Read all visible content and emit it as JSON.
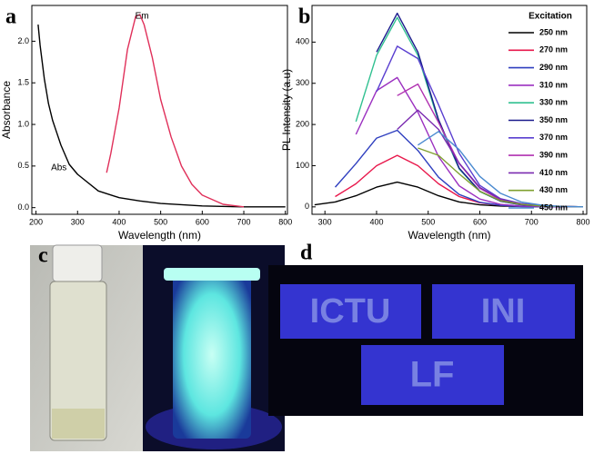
{
  "chart_data": [
    {
      "type": "line",
      "panel_label": "a",
      "x_label": "Wavelength (nm)",
      "y_label": "Absorbance",
      "xlim": [
        190,
        805
      ],
      "ylim": [
        -0.08,
        2.43
      ],
      "xticks": [
        200,
        300,
        400,
        500,
        600,
        700,
        800
      ],
      "yticks": [
        {
          "value": 0,
          "label": "0.0"
        },
        0.5,
        {
          "value": 1,
          "label": "1.0"
        },
        1.5,
        {
          "value": 2,
          "label": "2.0"
        }
      ],
      "grid": false,
      "series": [
        {
          "name": "Abs",
          "color": "#000000",
          "x": [
            205,
            210,
            220,
            230,
            240,
            250,
            260,
            280,
            300,
            350,
            400,
            450,
            500,
            600,
            700,
            800
          ],
          "values": [
            2.2,
            1.95,
            1.55,
            1.25,
            1.05,
            0.9,
            0.75,
            0.52,
            0.4,
            0.2,
            0.12,
            0.08,
            0.05,
            0.02,
            0.01,
            0.01
          ]
        },
        {
          "name": "Em",
          "color": "#e0305a",
          "x": [
            370,
            380,
            400,
            420,
            440,
            450,
            460,
            480,
            500,
            525,
            550,
            575,
            600,
            650,
            700
          ],
          "values": [
            0.42,
            0.65,
            1.2,
            1.9,
            2.3,
            2.32,
            2.2,
            1.8,
            1.3,
            0.85,
            0.5,
            0.28,
            0.15,
            0.04,
            0.01
          ]
        }
      ],
      "annotations": [
        {
          "text": "Abs",
          "x": 255,
          "y": 0.48
        },
        {
          "text": "Em",
          "x": 455,
          "y": 2.3
        }
      ]
    },
    {
      "type": "line",
      "panel_label": "b",
      "x_label": "Wavelength (nm)",
      "y_label": "PL Intensity (a.u)",
      "xlim": [
        275,
        807
      ],
      "ylim": [
        -18,
        489
      ],
      "xticks": [
        300,
        400,
        500,
        600,
        700,
        800
      ],
      "yticks": [
        0,
        100,
        200,
        300,
        400
      ],
      "grid": false,
      "legend_title": "Excitation",
      "legend": "upper right",
      "x": [
        280,
        320,
        360,
        400,
        440,
        480,
        520,
        560,
        600,
        640,
        680,
        720,
        760,
        800
      ],
      "series": [
        {
          "name": "250 nm",
          "color": "#000000",
          "values": [
            5,
            12,
            27,
            48,
            60,
            48,
            27,
            12,
            5,
            2,
            1,
            0,
            0,
            0
          ]
        },
        {
          "name": "270 nm",
          "color": "#e8174b",
          "values": [
            null,
            25,
            56,
            100,
            125,
            100,
            56,
            25,
            10,
            4,
            1,
            0,
            0,
            0
          ]
        },
        {
          "name": "290 nm",
          "color": "#2f3fbf",
          "values": [
            null,
            48,
            105,
            167,
            186,
            137,
            72,
            30,
            11,
            4,
            1,
            0,
            0,
            0
          ]
        },
        {
          "name": "310 nm",
          "color": "#9b30c0",
          "values": [
            null,
            null,
            176,
            282,
            314,
            230,
            122,
            51,
            19,
            6,
            2,
            1,
            0,
            0
          ]
        },
        {
          "name": "330 nm",
          "color": "#30c090",
          "values": [
            null,
            null,
            207,
            368,
            460,
            368,
            207,
            92,
            37,
            14,
            5,
            2,
            1,
            0
          ]
        },
        {
          "name": "350 nm",
          "color": "#1a1a8c",
          "values": [
            null,
            null,
            null,
            376,
            470,
            376,
            212,
            94,
            38,
            14,
            5,
            2,
            1,
            0
          ]
        },
        {
          "name": "370 nm",
          "color": "#5a3fd0",
          "values": [
            null,
            null,
            null,
            280,
            390,
            360,
            248,
            130,
            52,
            20,
            8,
            3,
            1,
            0
          ]
        },
        {
          "name": "390 nm",
          "color": "#b030b0",
          "values": [
            null,
            null,
            null,
            null,
            270,
            298,
            205,
            105,
            45,
            17,
            6,
            2,
            1,
            0
          ]
        },
        {
          "name": "410 nm",
          "color": "#7a2ab0",
          "values": [
            null,
            null,
            null,
            null,
            188,
            235,
            188,
            106,
            47,
            19,
            7,
            2,
            1,
            0
          ]
        },
        {
          "name": "430 nm",
          "color": "#80a030",
          "values": [
            null,
            null,
            null,
            null,
            null,
            143,
            125,
            80,
            38,
            15,
            6,
            2,
            1,
            0
          ]
        },
        {
          "name": "450 nm",
          "color": "#4a8ad0",
          "values": [
            null,
            null,
            null,
            null,
            null,
            150,
            183,
            139,
            74,
            33,
            12,
            4,
            1,
            0
          ]
        }
      ]
    }
  ],
  "photos": [
    {
      "panel_label": "c"
    },
    {
      "panel_label": "d",
      "texts": [
        "ICTU",
        "INI",
        "LF"
      ]
    }
  ]
}
